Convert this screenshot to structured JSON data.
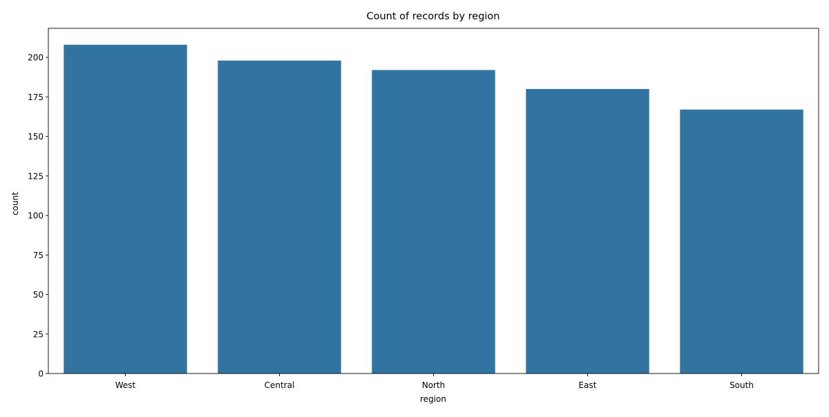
{
  "chart_data": {
    "type": "bar",
    "title": "Count of records by region",
    "xlabel": "region",
    "ylabel": "count",
    "categories": [
      "West",
      "Central",
      "North",
      "East",
      "South"
    ],
    "values": [
      208,
      198,
      192,
      180,
      167
    ],
    "ylim": [
      0,
      218.4
    ],
    "yticks": [
      0,
      25,
      50,
      75,
      100,
      125,
      150,
      175,
      200
    ],
    "grid": false,
    "legend": "none",
    "bar_color": "#3274a1"
  }
}
